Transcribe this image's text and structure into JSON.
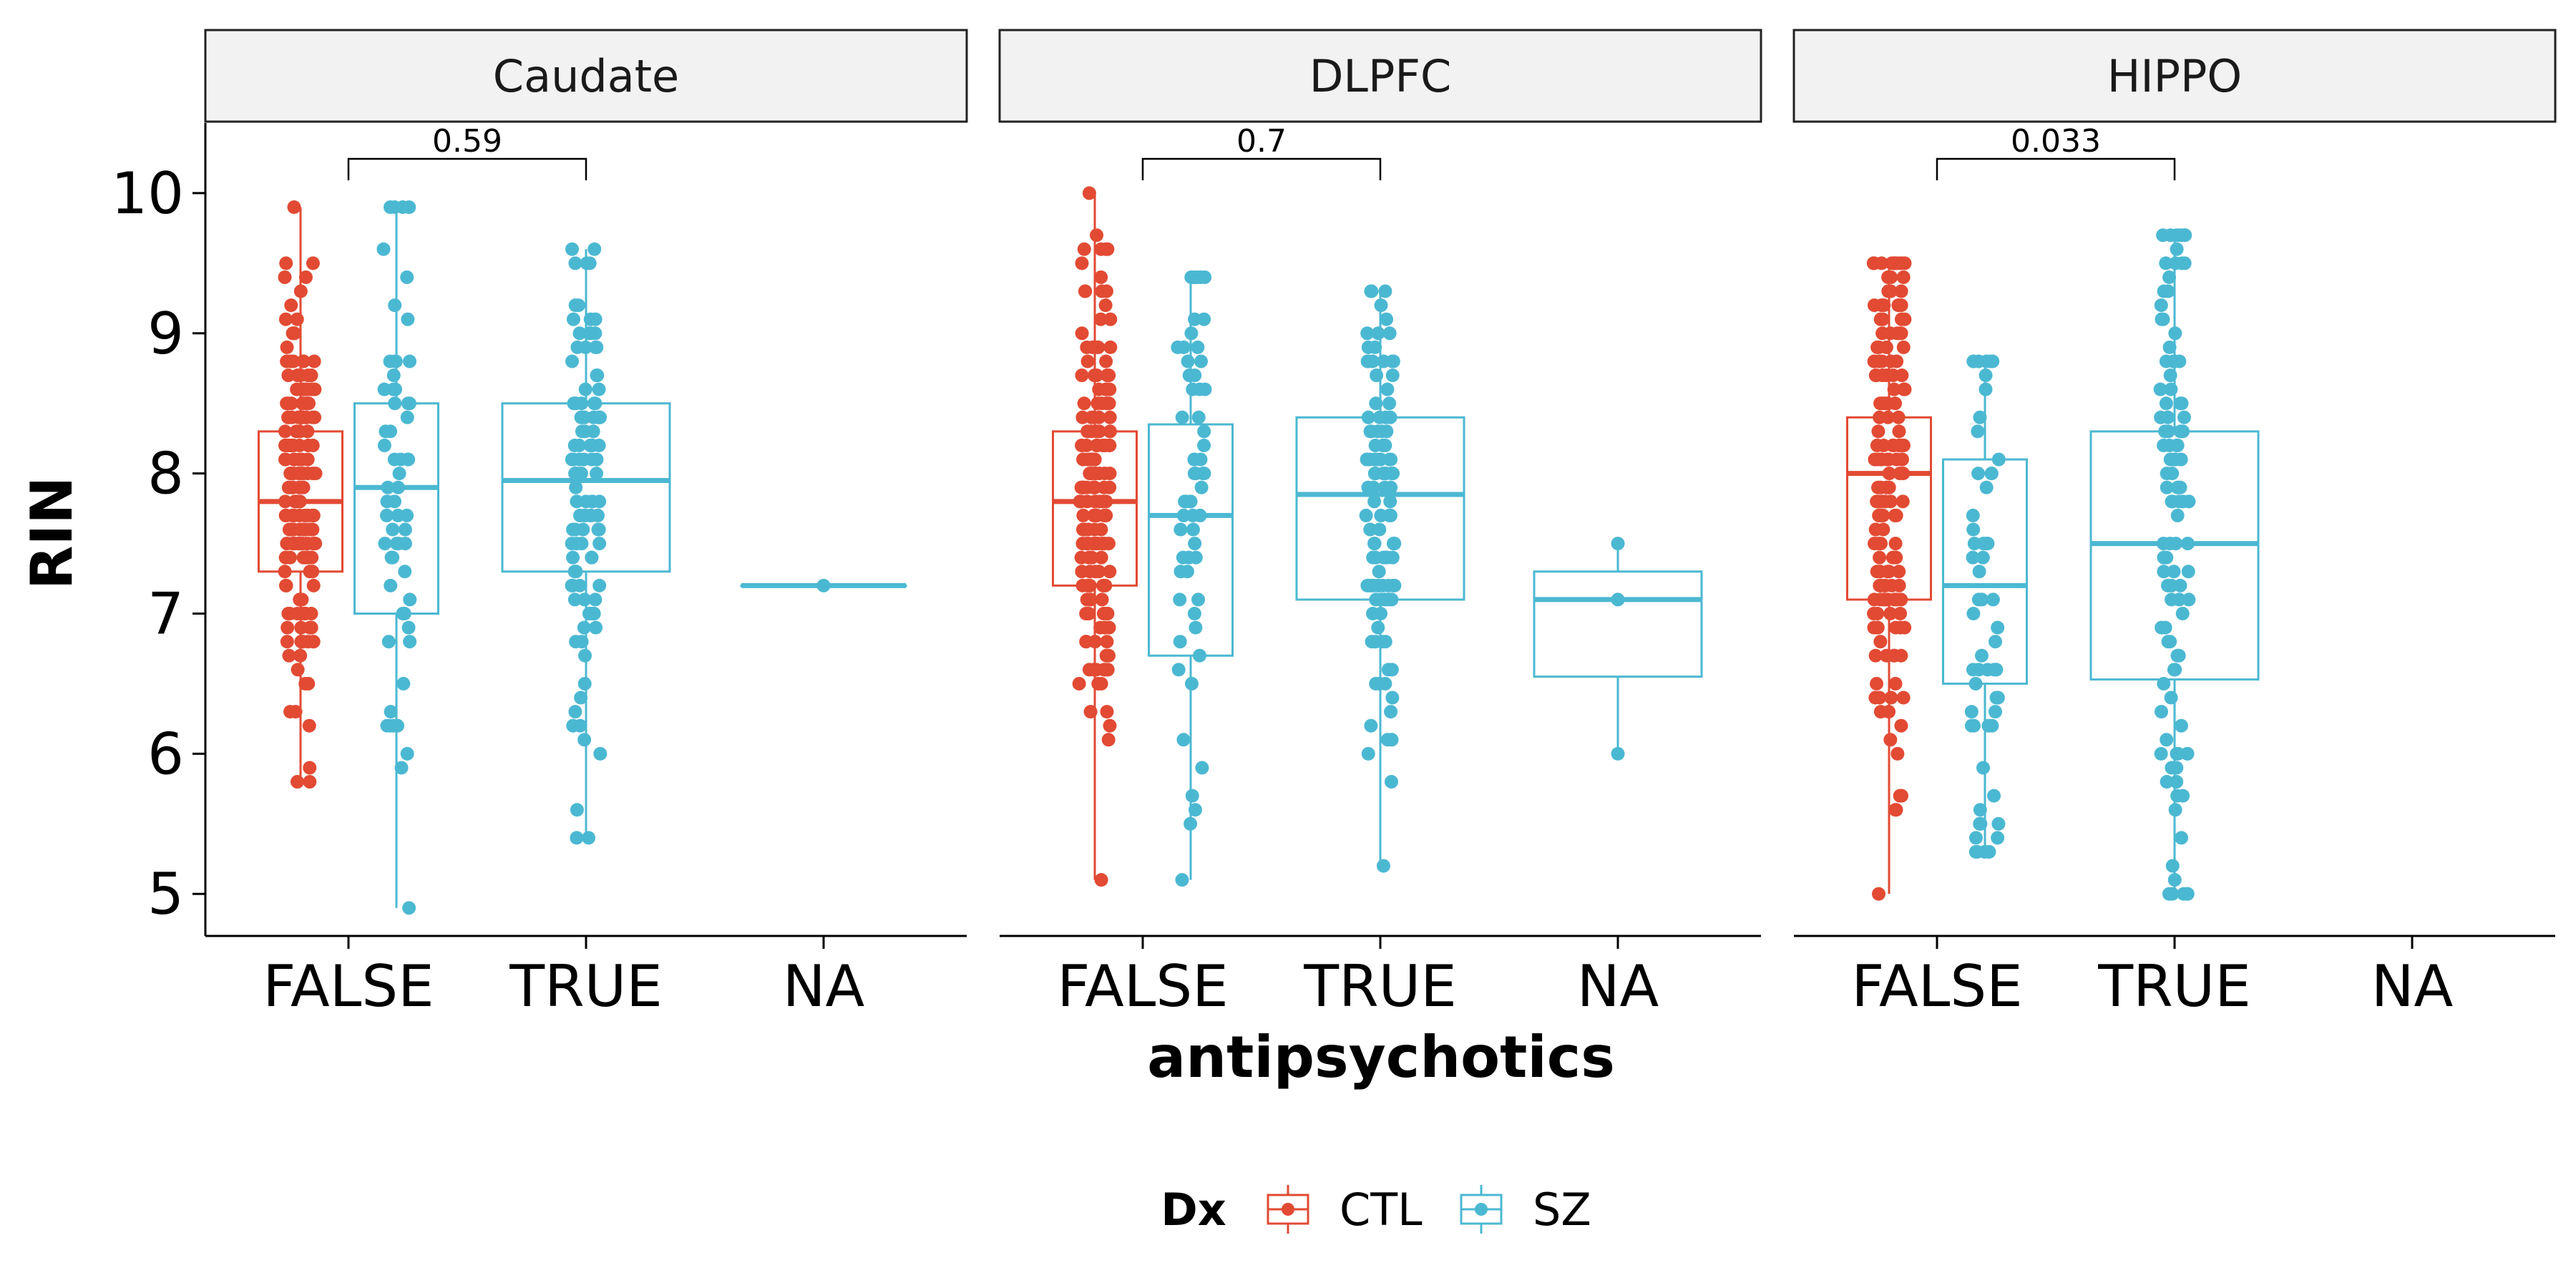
{
  "chart_data": {
    "type": "boxplot",
    "y_label": "RIN",
    "x_label": "antipsychotics",
    "ylim": [
      4.7,
      10.5
    ],
    "y_ticks": [
      5,
      6,
      7,
      8,
      9,
      10
    ],
    "x_categories": [
      "FALSE",
      "TRUE",
      "NA"
    ],
    "legend": {
      "title": "Dx",
      "position": "bottom",
      "entries": [
        {
          "name": "CTL",
          "color": "#E24A33"
        },
        {
          "name": "SZ",
          "color": "#4BB8D2"
        }
      ]
    },
    "panels": [
      {
        "name": "Caudate",
        "p_value": "0.59",
        "boxes": [
          {
            "category": "FALSE",
            "group": "CTL",
            "min": 5.8,
            "q1": 7.3,
            "median": 7.8,
            "q3": 8.3,
            "max": 9.9
          },
          {
            "category": "FALSE",
            "group": "SZ",
            "min": 4.9,
            "q1": 7.0,
            "median": 7.9,
            "q3": 8.5,
            "max": 9.9
          },
          {
            "category": "TRUE",
            "group": "SZ",
            "min": 5.4,
            "q1": 7.3,
            "median": 7.95,
            "q3": 8.5,
            "max": 9.6
          },
          {
            "category": "NA",
            "group": "SZ",
            "min": 7.2,
            "q1": 7.2,
            "median": 7.2,
            "q3": 7.2,
            "max": 7.2
          }
        ]
      },
      {
        "name": "DLPFC",
        "p_value": "0.7",
        "boxes": [
          {
            "category": "FALSE",
            "group": "CTL",
            "min": 5.1,
            "q1": 7.2,
            "median": 7.8,
            "q3": 8.3,
            "max": 10.0
          },
          {
            "category": "FALSE",
            "group": "SZ",
            "min": 5.1,
            "q1": 6.7,
            "median": 7.7,
            "q3": 8.35,
            "max": 9.4
          },
          {
            "category": "TRUE",
            "group": "SZ",
            "min": 5.2,
            "q1": 7.1,
            "median": 7.85,
            "q3": 8.4,
            "max": 9.3
          },
          {
            "category": "NA",
            "group": "SZ",
            "min": 6.0,
            "q1": 6.55,
            "median": 7.1,
            "q3": 7.3,
            "max": 7.5
          }
        ]
      },
      {
        "name": "HIPPO",
        "p_value": "0.033",
        "boxes": [
          {
            "category": "FALSE",
            "group": "CTL",
            "min": 5.0,
            "q1": 7.1,
            "median": 8.0,
            "q3": 8.4,
            "max": 9.5
          },
          {
            "category": "FALSE",
            "group": "SZ",
            "min": 5.3,
            "q1": 6.5,
            "median": 7.2,
            "q3": 8.1,
            "max": 8.8
          },
          {
            "category": "TRUE",
            "group": "SZ",
            "min": 5.0,
            "q1": 6.53,
            "median": 7.5,
            "q3": 8.3,
            "max": 9.7
          }
        ]
      }
    ]
  }
}
